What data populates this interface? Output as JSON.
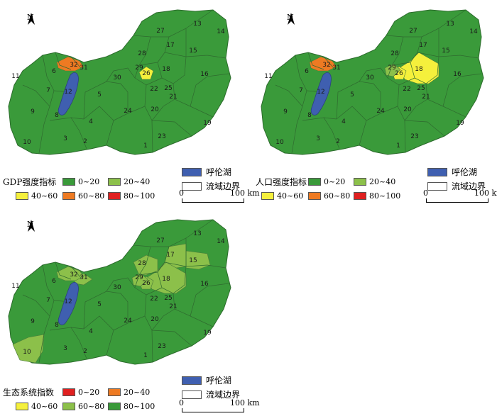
{
  "north_label": "N",
  "regions": [
    "1",
    "2",
    "3",
    "4",
    "5",
    "6",
    "7",
    "8",
    "9",
    "10",
    "11",
    "12",
    "13",
    "14",
    "15",
    "16",
    "17",
    "18",
    "19",
    "20",
    "21",
    "22",
    "23",
    "24",
    "25",
    "26",
    "27",
    "28",
    "29",
    "30",
    "31",
    "32"
  ],
  "common_legend": {
    "lake_label": "呼伦湖",
    "boundary_label": "流域边界",
    "scale_start": "0",
    "scale_end": "100 km"
  },
  "colors": {
    "lake": "#3f5fb0",
    "dark_green": "#3a9a3a",
    "light_green": "#8cc04a",
    "yellow": "#f5f03c",
    "orange": "#ee7a22",
    "red": "#e02020",
    "white": "#ffffff"
  },
  "panels": [
    {
      "title": "GDP强度指标",
      "legend": [
        {
          "label": "0~20",
          "color": "#3a9a3a"
        },
        {
          "label": "20~40",
          "color": "#8cc04a"
        },
        {
          "label": "40~60",
          "color": "#f5f03c"
        },
        {
          "label": "60~80",
          "color": "#ee7a22"
        },
        {
          "label": "80~100",
          "color": "#e02020"
        }
      ],
      "region_classes": {
        "26": "#f5f03c",
        "32": "#ee7a22"
      }
    },
    {
      "title": "人口强度指标",
      "legend": [
        {
          "label": "0~20",
          "color": "#3a9a3a"
        },
        {
          "label": "20~40",
          "color": "#8cc04a"
        },
        {
          "label": "40~60",
          "color": "#f5f03c"
        },
        {
          "label": "60~80",
          "color": "#ee7a22"
        },
        {
          "label": "80~100",
          "color": "#e02020"
        }
      ],
      "region_classes": {
        "18": "#f5f03c",
        "26": "#f5f03c",
        "29": "#8cc04a",
        "32": "#ee7a22"
      }
    },
    {
      "title": "生态系统指数",
      "legend": [
        {
          "label": "0~20",
          "color": "#e02020"
        },
        {
          "label": "20~40",
          "color": "#ee7a22"
        },
        {
          "label": "40~60",
          "color": "#f5f03c"
        },
        {
          "label": "60~80",
          "color": "#8cc04a"
        },
        {
          "label": "80~100",
          "color": "#3a9a3a"
        }
      ],
      "region_classes": {
        "10": "#8cc04a",
        "17": "#8cc04a",
        "18": "#8cc04a",
        "28": "#8cc04a",
        "29": "#8cc04a",
        "26": "#8cc04a",
        "15": "#8cc04a",
        "32": "#8cc04a",
        "31": "#8cc04a"
      }
    }
  ]
}
